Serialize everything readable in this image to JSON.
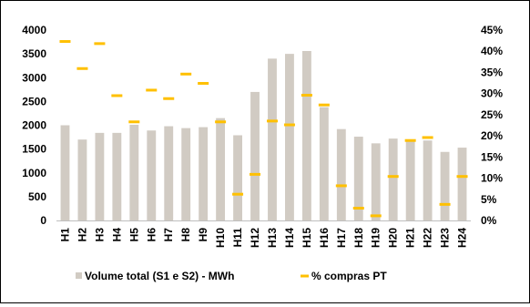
{
  "chart_data": {
    "type": "bar",
    "categories": [
      "H1",
      "H2",
      "H3",
      "H4",
      "H5",
      "H6",
      "H7",
      "H8",
      "H9",
      "H10",
      "H11",
      "H12",
      "H13",
      "H14",
      "H15",
      "H16",
      "H17",
      "H18",
      "H19",
      "H20",
      "H21",
      "H22",
      "H23",
      "H24"
    ],
    "series": [
      {
        "name": "Volume total (S1 e S2) - MWh",
        "type": "bar",
        "axis": "left",
        "color": "#d1cbc3",
        "values": [
          2000,
          1700,
          1840,
          1840,
          2010,
          1890,
          1980,
          1940,
          1960,
          2150,
          1790,
          2700,
          3400,
          3500,
          3560,
          2380,
          1920,
          1760,
          1620,
          1720,
          1660,
          1680,
          1440,
          1530
        ]
      },
      {
        "name": "% compras PT",
        "type": "marker",
        "axis": "right",
        "color": "#ffc000",
        "values": [
          42.3,
          35.9,
          41.8,
          29.5,
          23.3,
          30.8,
          28.8,
          34.6,
          32.4,
          23.3,
          6.2,
          10.9,
          23.5,
          22.6,
          29.6,
          27.3,
          8.2,
          2.9,
          1.1,
          10.4,
          18.9,
          19.6,
          3.8,
          10.4
        ]
      }
    ],
    "y_left": {
      "min": 0,
      "max": 4000,
      "ticks": [
        "0",
        "500",
        "1000",
        "1500",
        "2000",
        "2500",
        "3000",
        "3500",
        "4000"
      ]
    },
    "y_right": {
      "min": 0,
      "max": 45,
      "ticks": [
        "0%",
        "5%",
        "10%",
        "15%",
        "20%",
        "25%",
        "30%",
        "35%",
        "40%",
        "45%"
      ]
    },
    "legend": {
      "position": "bottom"
    },
    "grid": false
  }
}
